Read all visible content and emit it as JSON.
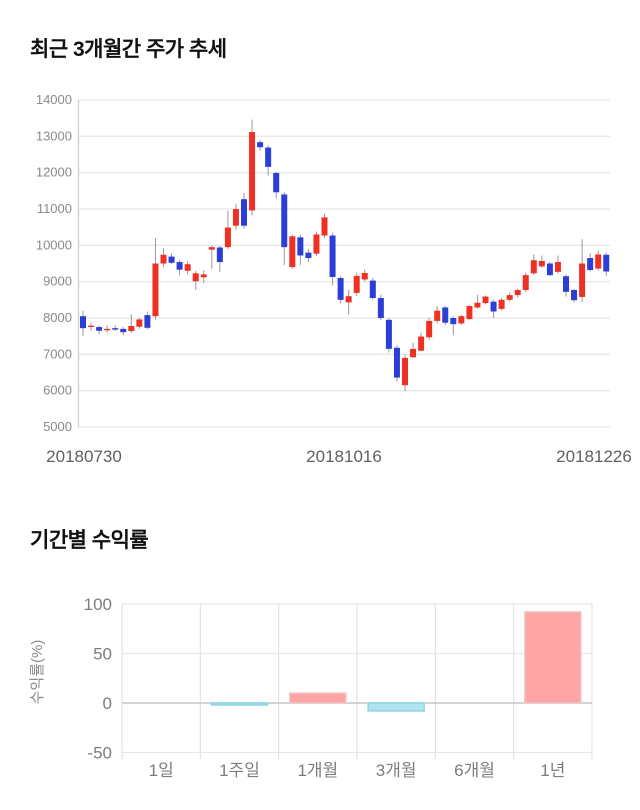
{
  "chart_data": [
    {
      "type": "candlestick",
      "title": "최근 3개월간 주가 추세",
      "ylim": [
        5000,
        14000
      ],
      "y_ticks": [
        14000,
        13000,
        12000,
        11000,
        10000,
        9000,
        8000,
        7000,
        6000,
        5000
      ],
      "x_tick_labels": [
        "20180730",
        "20181016",
        "20181226"
      ],
      "grid": true,
      "legend": false,
      "colors": {
        "up": "#ef3124",
        "down": "#2b3fd7",
        "wick": "#999999"
      },
      "candles_ohlc": [
        [
          8050,
          8200,
          7500,
          7720
        ],
        [
          7760,
          7880,
          7650,
          7790
        ],
        [
          7750,
          7800,
          7560,
          7650
        ],
        [
          7680,
          7800,
          7600,
          7700
        ],
        [
          7720,
          7800,
          7640,
          7680
        ],
        [
          7700,
          7760,
          7520,
          7610
        ],
        [
          7640,
          8100,
          7600,
          7780
        ],
        [
          7760,
          8000,
          7700,
          7960
        ],
        [
          8080,
          8180,
          7690,
          7730
        ],
        [
          8050,
          10200,
          7950,
          9500
        ],
        [
          9500,
          9920,
          9400,
          9740
        ],
        [
          9690,
          9780,
          9480,
          9520
        ],
        [
          9540,
          9600,
          9170,
          9330
        ],
        [
          9300,
          9560,
          9200,
          9480
        ],
        [
          9010,
          9300,
          8770,
          9230
        ],
        [
          9120,
          9320,
          8960,
          9200
        ],
        [
          9880,
          10000,
          9360,
          9950
        ],
        [
          9940,
          9990,
          9270,
          9540
        ],
        [
          9950,
          10950,
          9900,
          10490
        ],
        [
          10540,
          11140,
          10430,
          11000
        ],
        [
          11270,
          11450,
          10460,
          10540
        ],
        [
          10960,
          13460,
          10820,
          13120
        ],
        [
          12840,
          12900,
          12600,
          12700
        ],
        [
          12690,
          12750,
          11920,
          12160
        ],
        [
          11990,
          12020,
          11290,
          11460
        ],
        [
          11400,
          11460,
          9450,
          9950
        ],
        [
          9400,
          10300,
          9360,
          10250
        ],
        [
          10220,
          10300,
          9450,
          9720
        ],
        [
          9800,
          9900,
          9540,
          9650
        ],
        [
          9770,
          10380,
          9700,
          10300
        ],
        [
          10270,
          10870,
          10200,
          10770
        ],
        [
          10270,
          10350,
          8900,
          9130
        ],
        [
          9100,
          9150,
          8400,
          8500
        ],
        [
          8430,
          8780,
          8100,
          8600
        ],
        [
          8690,
          9250,
          8600,
          9160
        ],
        [
          9060,
          9330,
          9000,
          9240
        ],
        [
          9030,
          9100,
          8500,
          8550
        ],
        [
          8550,
          8650,
          7950,
          8000
        ],
        [
          7950,
          8000,
          7050,
          7150
        ],
        [
          7180,
          7250,
          6250,
          6360
        ],
        [
          6150,
          7000,
          5980,
          6900
        ],
        [
          6920,
          7320,
          6900,
          7150
        ],
        [
          7100,
          7600,
          7080,
          7490
        ],
        [
          7470,
          8010,
          7400,
          7920
        ],
        [
          7920,
          8330,
          7850,
          8200
        ],
        [
          8290,
          8330,
          7800,
          7870
        ],
        [
          8000,
          8050,
          7520,
          7830
        ],
        [
          7850,
          8100,
          7800,
          8050
        ],
        [
          7970,
          8360,
          7950,
          8330
        ],
        [
          8290,
          8640,
          8250,
          8420
        ],
        [
          8410,
          8620,
          8380,
          8590
        ],
        [
          8450,
          8500,
          8000,
          8180
        ],
        [
          8250,
          8550,
          8200,
          8500
        ],
        [
          8500,
          8700,
          8450,
          8630
        ],
        [
          8630,
          8810,
          8560,
          8770
        ],
        [
          8770,
          9250,
          8720,
          9180
        ],
        [
          9230,
          9750,
          9180,
          9590
        ],
        [
          9420,
          9720,
          9380,
          9570
        ],
        [
          9500,
          9550,
          9150,
          9180
        ],
        [
          9270,
          9720,
          9220,
          9540
        ],
        [
          9150,
          9200,
          8590,
          8720
        ],
        [
          8770,
          8800,
          8420,
          8490
        ],
        [
          8580,
          10170,
          8440,
          9500
        ],
        [
          9650,
          9780,
          9280,
          9320
        ],
        [
          9360,
          9850,
          9300,
          9750
        ],
        [
          9740,
          9800,
          9150,
          9280
        ]
      ]
    },
    {
      "type": "bar",
      "title": "기간별 수익률",
      "ylabel": "수익률(%)",
      "ylim": [
        -50,
        100
      ],
      "y_ticks": [
        100,
        50,
        0,
        -50
      ],
      "categories": [
        "1일",
        "1주일",
        "1개월",
        "3개월",
        "6개월",
        "1년"
      ],
      "values": [
        0,
        -2,
        10,
        -8,
        0,
        92
      ],
      "grid": true,
      "legend": false,
      "colors": {
        "positive": "#ffa5a5",
        "positive_border": "#e9c7c7",
        "negative": "#ade4ef",
        "negative_border": "#8fd3e2"
      }
    }
  ]
}
